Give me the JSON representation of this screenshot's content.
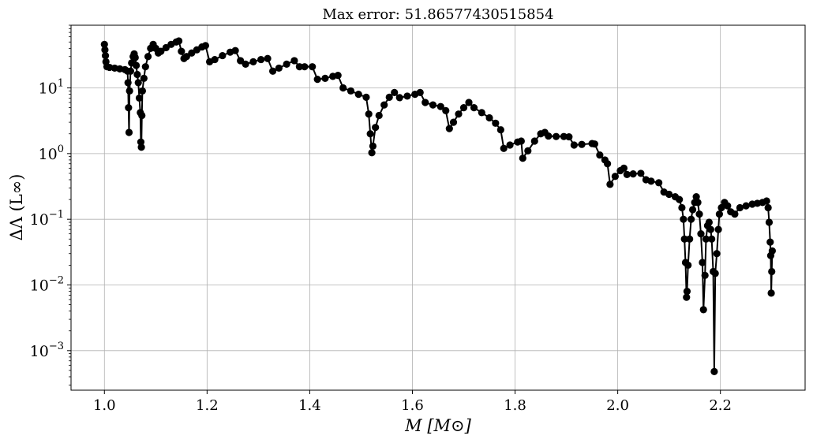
{
  "chart_data": {
    "type": "line",
    "title": "Max error: 51.86577430515854",
    "xlabel": "M [M⊙]",
    "ylabel": "ΔΛ (L∞)",
    "xlim": [
      0.935,
      2.365
    ],
    "ylim": [
      0.00025,
      90
    ],
    "yscale": "log",
    "grid": true,
    "marker": "circle",
    "xticks": [
      {
        "value": 1.0,
        "label": "1.0"
      },
      {
        "value": 1.2,
        "label": "1.2"
      },
      {
        "value": 1.4,
        "label": "1.4"
      },
      {
        "value": 1.6,
        "label": "1.6"
      },
      {
        "value": 1.8,
        "label": "1.8"
      },
      {
        "value": 2.0,
        "label": "2.0"
      },
      {
        "value": 2.2,
        "label": "2.2"
      }
    ],
    "yticks": [
      {
        "value": 0.001,
        "base": "10",
        "exp": "−3"
      },
      {
        "value": 0.01,
        "base": "10",
        "exp": "−2"
      },
      {
        "value": 0.1,
        "base": "10",
        "exp": "−1"
      },
      {
        "value": 1,
        "base": "10",
        "exp": "0"
      },
      {
        "value": 10,
        "base": "10",
        "exp": "1"
      }
    ],
    "series": [
      {
        "color": "#000000",
        "points": [
          [
            1.0,
            46
          ],
          [
            1.001,
            38
          ],
          [
            1.002,
            31
          ],
          [
            1.003,
            25
          ],
          [
            1.005,
            21
          ],
          [
            1.01,
            20.5
          ],
          [
            1.02,
            20
          ],
          [
            1.03,
            19.5
          ],
          [
            1.04,
            19
          ],
          [
            1.045,
            18
          ],
          [
            1.046,
            12
          ],
          [
            1.047,
            5
          ],
          [
            1.048,
            2.1
          ],
          [
            1.049,
            9
          ],
          [
            1.051,
            18
          ],
          [
            1.053,
            24
          ],
          [
            1.056,
            30
          ],
          [
            1.058,
            33
          ],
          [
            1.06,
            29
          ],
          [
            1.062,
            22
          ],
          [
            1.064,
            16
          ],
          [
            1.066,
            12
          ],
          [
            1.068,
            7
          ],
          [
            1.07,
            4.2
          ],
          [
            1.071,
            1.5
          ],
          [
            1.072,
            1.25
          ],
          [
            1.073,
            3.8
          ],
          [
            1.074,
            9
          ],
          [
            1.077,
            14
          ],
          [
            1.08,
            21
          ],
          [
            1.085,
            30
          ],
          [
            1.09,
            40
          ],
          [
            1.095,
            46
          ],
          [
            1.1,
            40
          ],
          [
            1.105,
            34
          ],
          [
            1.11,
            36
          ],
          [
            1.12,
            41
          ],
          [
            1.13,
            46
          ],
          [
            1.14,
            50
          ],
          [
            1.145,
            51.87
          ],
          [
            1.15,
            36
          ],
          [
            1.155,
            28
          ],
          [
            1.16,
            30
          ],
          [
            1.17,
            34
          ],
          [
            1.18,
            38
          ],
          [
            1.19,
            42
          ],
          [
            1.197,
            44
          ],
          [
            1.205,
            25
          ],
          [
            1.215,
            27
          ],
          [
            1.23,
            31
          ],
          [
            1.245,
            35
          ],
          [
            1.255,
            37
          ],
          [
            1.265,
            26
          ],
          [
            1.275,
            23
          ],
          [
            1.29,
            25
          ],
          [
            1.305,
            27
          ],
          [
            1.318,
            28
          ],
          [
            1.328,
            18
          ],
          [
            1.34,
            20
          ],
          [
            1.355,
            23
          ],
          [
            1.37,
            26
          ],
          [
            1.38,
            21
          ],
          [
            1.39,
            21
          ],
          [
            1.405,
            21
          ],
          [
            1.415,
            13.5
          ],
          [
            1.43,
            14
          ],
          [
            1.445,
            15
          ],
          [
            1.455,
            15.5
          ],
          [
            1.465,
            10
          ],
          [
            1.48,
            9
          ],
          [
            1.495,
            8
          ],
          [
            1.51,
            7.2
          ],
          [
            1.515,
            4
          ],
          [
            1.518,
            2
          ],
          [
            1.521,
            1.03
          ],
          [
            1.523,
            1.3
          ],
          [
            1.528,
            2.5
          ],
          [
            1.535,
            3.8
          ],
          [
            1.545,
            5.5
          ],
          [
            1.555,
            7.2
          ],
          [
            1.565,
            8.5
          ],
          [
            1.575,
            7.1
          ],
          [
            1.59,
            7.5
          ],
          [
            1.605,
            8
          ],
          [
            1.615,
            8.5
          ],
          [
            1.625,
            6
          ],
          [
            1.64,
            5.5
          ],
          [
            1.655,
            5.2
          ],
          [
            1.665,
            4.5
          ],
          [
            1.672,
            2.4
          ],
          [
            1.68,
            3
          ],
          [
            1.69,
            4
          ],
          [
            1.7,
            5
          ],
          [
            1.71,
            6
          ],
          [
            1.72,
            5
          ],
          [
            1.735,
            4.2
          ],
          [
            1.75,
            3.5
          ],
          [
            1.762,
            2.9
          ],
          [
            1.772,
            2.3
          ],
          [
            1.778,
            1.2
          ],
          [
            1.79,
            1.35
          ],
          [
            1.805,
            1.5
          ],
          [
            1.812,
            1.55
          ],
          [
            1.815,
            0.85
          ],
          [
            1.825,
            1.1
          ],
          [
            1.838,
            1.55
          ],
          [
            1.85,
            2.0
          ],
          [
            1.858,
            2.1
          ],
          [
            1.865,
            1.85
          ],
          [
            1.88,
            1.82
          ],
          [
            1.895,
            1.82
          ],
          [
            1.905,
            1.8
          ],
          [
            1.915,
            1.35
          ],
          [
            1.93,
            1.38
          ],
          [
            1.95,
            1.42
          ],
          [
            1.955,
            1.4
          ],
          [
            1.965,
            0.95
          ],
          [
            1.975,
            0.8
          ],
          [
            1.98,
            0.7
          ],
          [
            1.985,
            0.34
          ],
          [
            1.995,
            0.45
          ],
          [
            2.005,
            0.55
          ],
          [
            2.012,
            0.6
          ],
          [
            2.018,
            0.48
          ],
          [
            2.03,
            0.49
          ],
          [
            2.045,
            0.5
          ],
          [
            2.055,
            0.4
          ],
          [
            2.065,
            0.38
          ],
          [
            2.08,
            0.36
          ],
          [
            2.09,
            0.26
          ],
          [
            2.1,
            0.24
          ],
          [
            2.112,
            0.22
          ],
          [
            2.12,
            0.2
          ],
          [
            2.125,
            0.15
          ],
          [
            2.128,
            0.1
          ],
          [
            2.13,
            0.05
          ],
          [
            2.132,
            0.022
          ],
          [
            2.134,
            0.0065
          ],
          [
            2.135,
            0.008
          ],
          [
            2.137,
            0.02
          ],
          [
            2.14,
            0.05
          ],
          [
            2.143,
            0.1
          ],
          [
            2.146,
            0.14
          ],
          [
            2.15,
            0.18
          ],
          [
            2.153,
            0.22
          ],
          [
            2.156,
            0.18
          ],
          [
            2.159,
            0.12
          ],
          [
            2.162,
            0.06
          ],
          [
            2.165,
            0.022
          ],
          [
            2.167,
            0.0042
          ],
          [
            2.17,
            0.014
          ],
          [
            2.172,
            0.05
          ],
          [
            2.175,
            0.08
          ],
          [
            2.178,
            0.09
          ],
          [
            2.181,
            0.07
          ],
          [
            2.183,
            0.05
          ],
          [
            2.186,
            0.016
          ],
          [
            2.188,
            0.00048
          ],
          [
            2.19,
            0.015
          ],
          [
            2.193,
            0.03
          ],
          [
            2.196,
            0.07
          ],
          [
            2.198,
            0.12
          ],
          [
            2.202,
            0.15
          ],
          [
            2.208,
            0.18
          ],
          [
            2.214,
            0.16
          ],
          [
            2.22,
            0.13
          ],
          [
            2.228,
            0.12
          ],
          [
            2.238,
            0.15
          ],
          [
            2.25,
            0.16
          ],
          [
            2.262,
            0.17
          ],
          [
            2.272,
            0.175
          ],
          [
            2.282,
            0.18
          ],
          [
            2.29,
            0.19
          ],
          [
            2.293,
            0.15
          ],
          [
            2.295,
            0.09
          ],
          [
            2.297,
            0.045
          ],
          [
            2.298,
            0.028
          ],
          [
            2.299,
            0.0075
          ],
          [
            2.3,
            0.016
          ],
          [
            2.301,
            0.033
          ]
        ]
      }
    ]
  }
}
